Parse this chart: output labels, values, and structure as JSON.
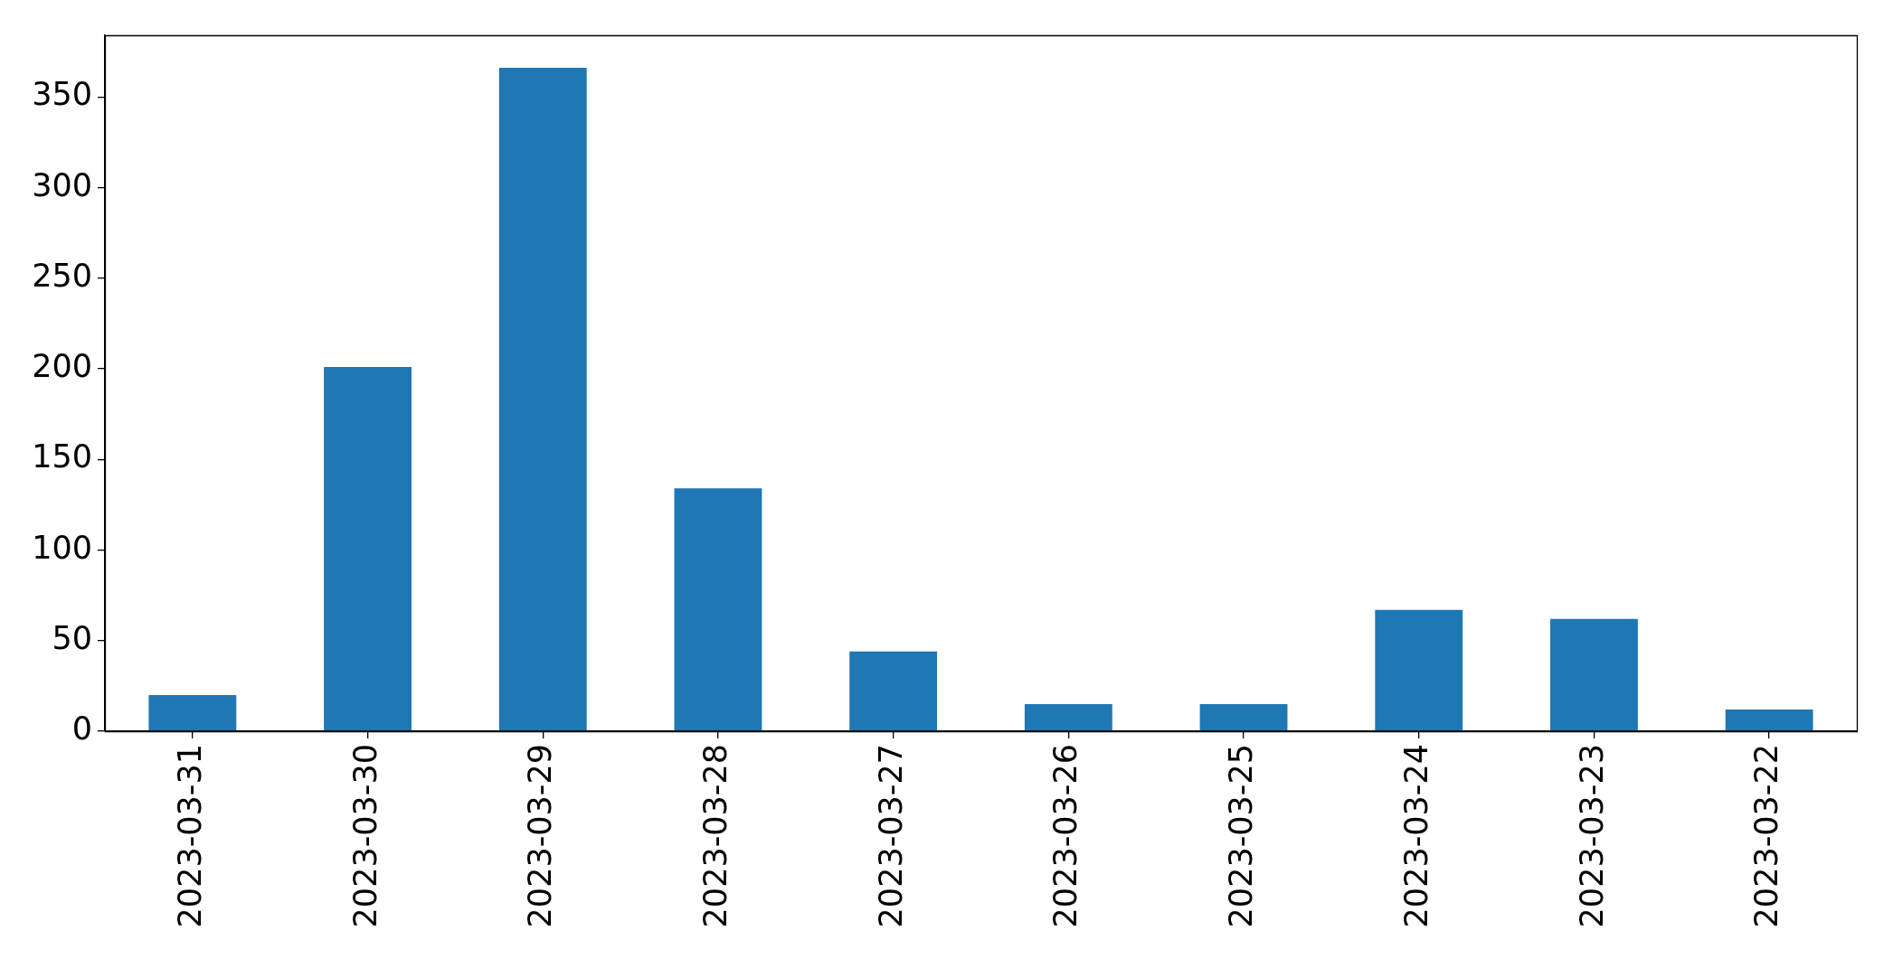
{
  "chart_data": {
    "type": "bar",
    "categories": [
      "2023-03-31",
      "2023-03-30",
      "2023-03-29",
      "2023-03-28",
      "2023-03-27",
      "2023-03-26",
      "2023-03-25",
      "2023-03-24",
      "2023-03-23",
      "2023-03-22"
    ],
    "values": [
      20,
      201,
      366,
      134,
      44,
      15,
      15,
      67,
      62,
      12
    ],
    "color": "#1f77b4",
    "ylim": [
      0,
      384
    ],
    "yticks": [
      0,
      50,
      100,
      150,
      200,
      250,
      300,
      350
    ]
  }
}
